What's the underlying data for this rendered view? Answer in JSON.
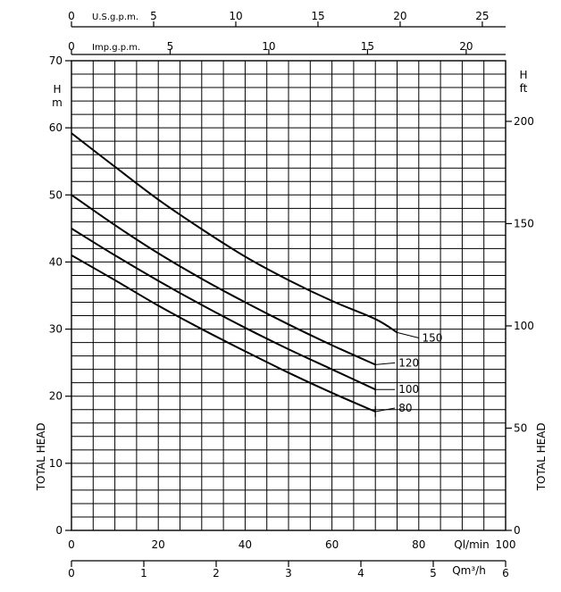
{
  "chart_data": {
    "type": "line",
    "title": "",
    "xlabel": "Ql/min",
    "ylabel": "TOTAL HEAD",
    "xlim": [
      0,
      100
    ],
    "ylim": [
      0,
      70
    ],
    "x_ticks": [
      0,
      20,
      40,
      60,
      80,
      100
    ],
    "y_ticks": [
      0,
      10,
      20,
      30,
      40,
      50,
      60,
      70
    ],
    "left_unit": "H\nm",
    "left_unit_h": "H",
    "left_unit_m": "m",
    "right_axis": {
      "label": "TOTAL HEAD",
      "unit_h": "H",
      "unit_ft": "ft",
      "ticks": [
        0,
        50,
        100,
        150,
        200
      ],
      "factor": 3.2808
    },
    "top_axis_usgpm": {
      "label": "U.S.g.p.m.",
      "ticks": [
        0,
        5,
        10,
        15,
        20,
        25
      ],
      "factor": 3.7854
    },
    "top_axis_impgpm": {
      "label": "Imp.g.p.m.",
      "ticks": [
        0,
        5,
        10,
        15,
        20
      ],
      "factor": 4.5461
    },
    "bottom_axis_m3h": {
      "label": "Qm³/h",
      "ticks": [
        0,
        1,
        2,
        3,
        4,
        5,
        6
      ],
      "factor": 16.6667
    },
    "grid": true,
    "series": [
      {
        "name": "150",
        "x": [
          0,
          10,
          20,
          30,
          40,
          50,
          60,
          70,
          75
        ],
        "y": [
          59.2,
          54.2,
          49.3,
          44.9,
          40.8,
          37.3,
          34.2,
          31.5,
          29.5
        ]
      },
      {
        "name": "120",
        "x": [
          0,
          10,
          20,
          30,
          40,
          50,
          60,
          70
        ],
        "y": [
          50,
          45.5,
          41.3,
          37.5,
          34,
          30.7,
          27.6,
          24.7
        ]
      },
      {
        "name": "100",
        "x": [
          0,
          10,
          20,
          30,
          40,
          50,
          60,
          70
        ],
        "y": [
          45,
          41,
          37.2,
          33.6,
          30.2,
          27,
          24,
          21
        ]
      },
      {
        "name": "80",
        "x": [
          0,
          10,
          20,
          30,
          40,
          50,
          60,
          70
        ],
        "y": [
          41,
          37.3,
          33.5,
          30,
          26.7,
          23.5,
          20.5,
          17.7
        ]
      }
    ]
  }
}
